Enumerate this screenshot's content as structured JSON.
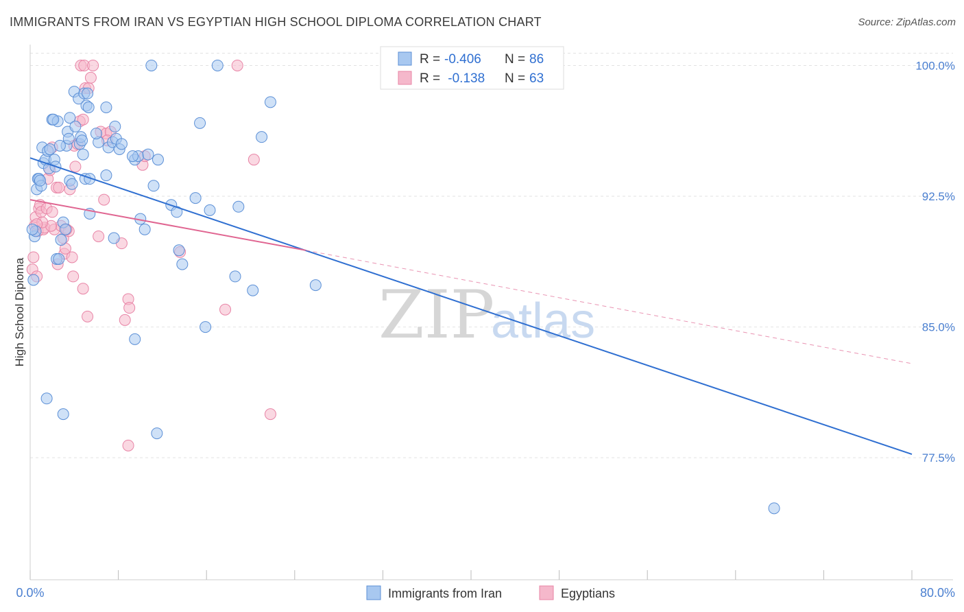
{
  "header": {
    "title": "IMMIGRANTS FROM IRAN VS EGYPTIAN HIGH SCHOOL DIPLOMA CORRELATION CHART",
    "source": "Source: ZipAtlas.com"
  },
  "watermark": {
    "zip": "ZIP",
    "atlas": "atlas"
  },
  "legend_box": {
    "rows": [
      {
        "r_label": "R = ",
        "r_value": "-0.406",
        "n_label": "N = ",
        "n_value": "86"
      },
      {
        "r_label": "R = ",
        "r_value": " -0.138",
        "n_label": "N = ",
        "n_value": "63"
      }
    ]
  },
  "colors": {
    "blue_fill": "#a8c8f0",
    "blue_stroke": "#5b8fd6",
    "blue_line": "#2f6fd1",
    "pink_fill": "#f5b8cb",
    "pink_stroke": "#e884a6",
    "pink_line": "#e06591",
    "axis_text": "#4a7fd0",
    "grid": "#e2e2e2"
  },
  "chart_data": {
    "type": "scatter",
    "title": "IMMIGRANTS FROM IRAN VS EGYPTIAN HIGH SCHOOL DIPLOMA CORRELATION CHART",
    "xlabel": "",
    "ylabel": "High School Diploma",
    "xlim": [
      0,
      80
    ],
    "ylim": [
      70.5,
      101.2
    ],
    "x_tick_labels": [
      "0.0%",
      "80.0%"
    ],
    "y_ticks": [
      77.5,
      85.0,
      92.5,
      100.0
    ],
    "y_tick_labels": [
      "77.5%",
      "85.0%",
      "92.5%",
      "100.0%"
    ],
    "grid": true,
    "legend_position": "bottom-center",
    "series": [
      {
        "name": "Immigrants from Iran",
        "color": "#5b8fd6",
        "r": -0.406,
        "n": 86,
        "trend": {
          "x0": 0,
          "y0": 94.7,
          "x1": 80,
          "y1": 77.7
        },
        "points": [
          [
            0.3,
            87.7
          ],
          [
            0.4,
            90.2
          ],
          [
            0.5,
            90.5
          ],
          [
            0.6,
            92.9
          ],
          [
            0.7,
            93.5
          ],
          [
            0.8,
            93.5
          ],
          [
            1.0,
            93.1
          ],
          [
            1.1,
            95.3
          ],
          [
            1.2,
            94.4
          ],
          [
            1.4,
            94.6
          ],
          [
            1.6,
            95.1
          ],
          [
            1.7,
            94.1
          ],
          [
            1.8,
            95.2
          ],
          [
            2.0,
            96.9
          ],
          [
            2.2,
            94.6
          ],
          [
            2.3,
            94.2
          ],
          [
            2.5,
            96.8
          ],
          [
            2.4,
            88.9
          ],
          [
            2.6,
            88.9
          ],
          [
            2.8,
            90.0
          ],
          [
            3.0,
            91.0
          ],
          [
            3.2,
            90.6
          ],
          [
            3.3,
            95.4
          ],
          [
            3.4,
            96.2
          ],
          [
            3.6,
            93.4
          ],
          [
            3.8,
            93.2
          ],
          [
            3.6,
            97.0
          ],
          [
            4.1,
            96.5
          ],
          [
            4.0,
            98.5
          ],
          [
            4.4,
            98.1
          ],
          [
            4.5,
            95.5
          ],
          [
            4.6,
            95.9
          ],
          [
            4.7,
            95.7
          ],
          [
            4.8,
            94.9
          ],
          [
            4.9,
            98.4
          ],
          [
            5.1,
            97.7
          ],
          [
            5.2,
            98.4
          ],
          [
            5.0,
            93.5
          ],
          [
            5.4,
            93.5
          ],
          [
            5.3,
            97.6
          ],
          [
            5.4,
            91.5
          ],
          [
            6.2,
            95.6
          ],
          [
            6.9,
            93.7
          ],
          [
            6.9,
            97.6
          ],
          [
            7.1,
            95.3
          ],
          [
            7.5,
            95.6
          ],
          [
            7.7,
            96.5
          ],
          [
            7.8,
            95.8
          ],
          [
            8.1,
            95.2
          ],
          [
            8.3,
            95.5
          ],
          [
            7.6,
            90.1
          ],
          [
            9.5,
            94.6
          ],
          [
            9.8,
            94.8
          ],
          [
            10.0,
            91.2
          ],
          [
            10.4,
            90.6
          ],
          [
            10.7,
            94.9
          ],
          [
            11.2,
            93.1
          ],
          [
            11.6,
            94.6
          ],
          [
            12.8,
            92.0
          ],
          [
            13.3,
            91.6
          ],
          [
            13.5,
            89.4
          ],
          [
            13.8,
            88.6
          ],
          [
            15.0,
            92.4
          ],
          [
            15.4,
            96.7
          ],
          [
            15.9,
            85.0
          ],
          [
            16.3,
            91.7
          ],
          [
            17.0,
            100.0
          ],
          [
            18.6,
            87.9
          ],
          [
            18.9,
            91.9
          ],
          [
            20.2,
            87.1
          ],
          [
            21.0,
            95.9
          ],
          [
            21.8,
            97.9
          ],
          [
            25.9,
            87.4
          ],
          [
            11.0,
            100.0
          ],
          [
            1.5,
            80.9
          ],
          [
            3.0,
            80.0
          ],
          [
            11.5,
            78.9
          ],
          [
            9.5,
            84.3
          ],
          [
            67.5,
            74.6
          ],
          [
            0.2,
            90.6
          ],
          [
            0.9,
            93.4
          ],
          [
            2.1,
            96.9
          ],
          [
            2.7,
            95.4
          ],
          [
            6.0,
            96.1
          ],
          [
            3.5,
            95.8
          ],
          [
            9.3,
            94.8
          ]
        ]
      },
      {
        "name": "Egyptians",
        "color": "#e884a6",
        "r": -0.138,
        "n": 63,
        "trend": {
          "x0": 0,
          "y0": 92.3,
          "x1": 25,
          "y1": 89.4,
          "dash_x1": 80,
          "dash_y1": 82.9
        },
        "points": [
          [
            0.2,
            88.3
          ],
          [
            0.3,
            89.0
          ],
          [
            0.4,
            90.8
          ],
          [
            0.5,
            91.3
          ],
          [
            0.6,
            87.9
          ],
          [
            0.7,
            90.5
          ],
          [
            0.8,
            91.8
          ],
          [
            0.9,
            92.0
          ],
          [
            1.0,
            91.6
          ],
          [
            1.2,
            90.6
          ],
          [
            1.3,
            90.7
          ],
          [
            1.5,
            91.8
          ],
          [
            1.6,
            93.5
          ],
          [
            1.8,
            94.0
          ],
          [
            2.0,
            91.6
          ],
          [
            2.2,
            90.6
          ],
          [
            2.4,
            93.0
          ],
          [
            2.6,
            93.0
          ],
          [
            2.8,
            90.8
          ],
          [
            3.0,
            90.1
          ],
          [
            3.1,
            89.2
          ],
          [
            3.2,
            89.5
          ],
          [
            3.5,
            90.5
          ],
          [
            3.6,
            92.9
          ],
          [
            3.8,
            89.0
          ],
          [
            3.9,
            87.9
          ],
          [
            4.0,
            95.4
          ],
          [
            4.1,
            94.2
          ],
          [
            4.5,
            96.8
          ],
          [
            4.8,
            96.9
          ],
          [
            4.6,
            100.0
          ],
          [
            4.9,
            100.0
          ],
          [
            5.0,
            98.7
          ],
          [
            5.3,
            98.7
          ],
          [
            5.5,
            99.3
          ],
          [
            5.7,
            100.0
          ],
          [
            6.2,
            90.2
          ],
          [
            6.4,
            96.2
          ],
          [
            6.7,
            92.3
          ],
          [
            6.9,
            96.1
          ],
          [
            7.3,
            96.2
          ],
          [
            8.3,
            89.8
          ],
          [
            8.6,
            85.4
          ],
          [
            8.9,
            86.6
          ],
          [
            9.0,
            86.1
          ],
          [
            10.2,
            94.3
          ],
          [
            10.4,
            94.8
          ],
          [
            13.6,
            89.3
          ],
          [
            17.7,
            86.0
          ],
          [
            18.8,
            100.0
          ],
          [
            20.3,
            94.6
          ],
          [
            21.8,
            80.0
          ],
          [
            8.9,
            78.2
          ],
          [
            5.2,
            85.6
          ],
          [
            4.8,
            87.2
          ],
          [
            1.9,
            90.8
          ],
          [
            2.5,
            88.6
          ],
          [
            1.1,
            91.0
          ],
          [
            0.6,
            90.9
          ],
          [
            3.3,
            90.6
          ],
          [
            2.0,
            95.3
          ],
          [
            4.3,
            95.5
          ],
          [
            7.0,
            95.7
          ]
        ]
      }
    ]
  },
  "bottom_legend": [
    {
      "label": "Immigrants from Iran"
    },
    {
      "label": "Egyptians"
    }
  ]
}
